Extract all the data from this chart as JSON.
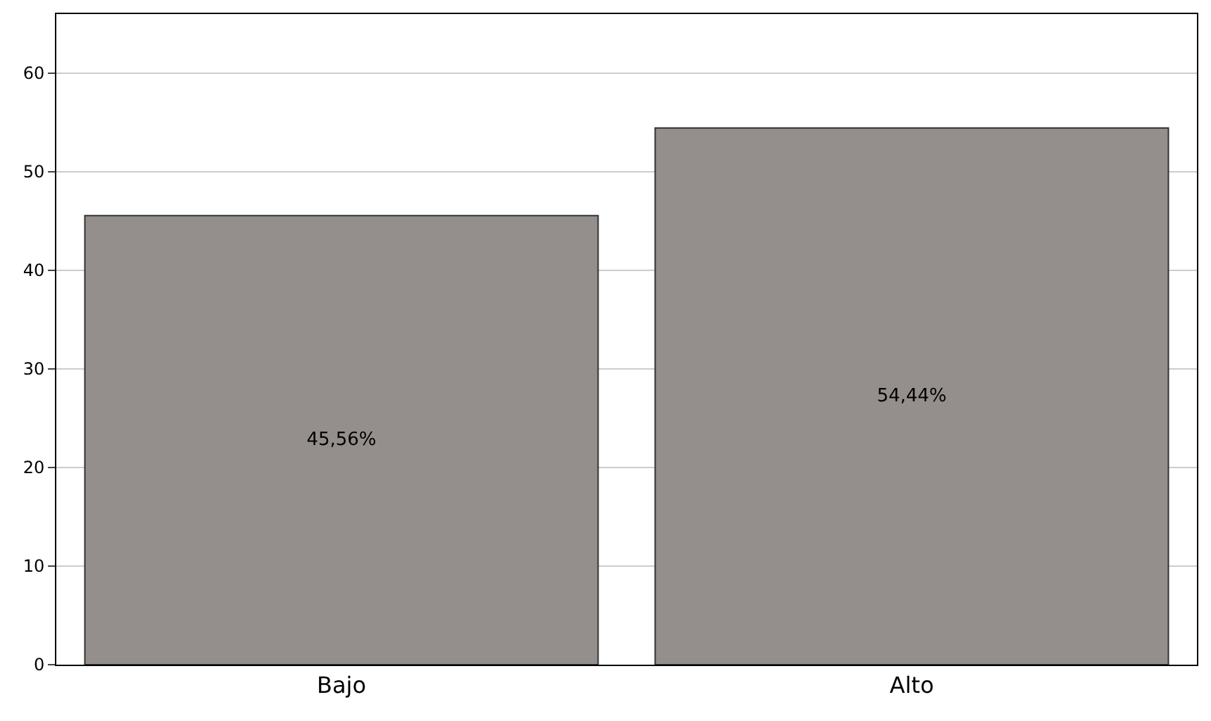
{
  "chart_data": {
    "type": "bar",
    "categories": [
      "Bajo",
      "Alto"
    ],
    "values": [
      45.56,
      54.44
    ],
    "value_labels": [
      "45,56%",
      "54,44%"
    ],
    "color": "#948f8c",
    "ylim": [
      0,
      66
    ],
    "yticks": [
      0,
      10,
      20,
      30,
      40,
      50,
      60
    ],
    "grid": "y",
    "legend": false
  }
}
